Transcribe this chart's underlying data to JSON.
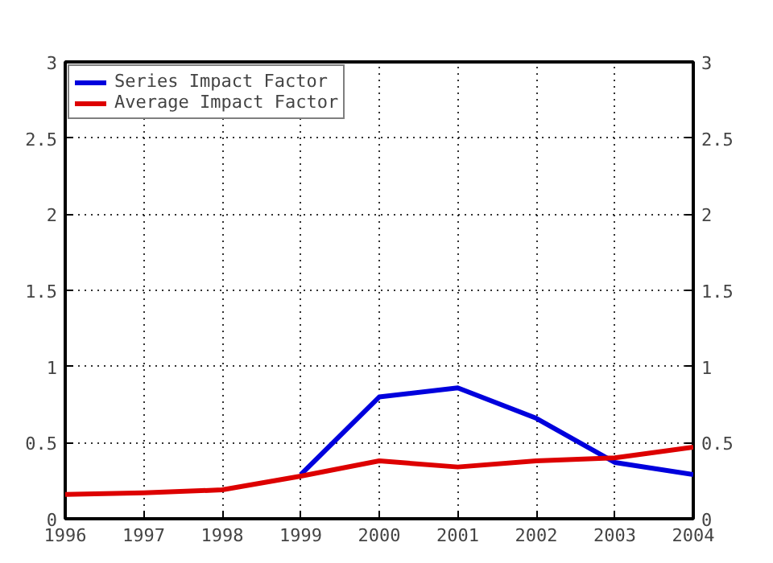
{
  "chart_data": {
    "type": "line",
    "x": [
      1996,
      1997,
      1998,
      1999,
      2000,
      2001,
      2002,
      2003,
      2004
    ],
    "series": [
      {
        "name": "Series Impact Factor",
        "color": "#0000dd",
        "values": [
          null,
          null,
          null,
          0.29,
          0.8,
          0.86,
          0.66,
          0.37,
          0.29
        ]
      },
      {
        "name": "Average Impact Factor",
        "color": "#dd0000",
        "values": [
          0.16,
          0.17,
          0.19,
          0.28,
          0.38,
          0.34,
          0.38,
          0.4,
          0.47
        ]
      }
    ],
    "xlim": [
      1996,
      2004
    ],
    "xticks": [
      1996,
      1997,
      1998,
      1999,
      2000,
      2001,
      2002,
      2003,
      2004
    ],
    "ylim": [
      0,
      3
    ],
    "yticks": [
      0,
      0.5,
      1,
      1.5,
      2,
      2.5,
      3
    ],
    "y2lim": [
      0,
      3
    ],
    "y2ticks": [
      0,
      0.5,
      1,
      1.5,
      2,
      2.5,
      3
    ],
    "grid": true,
    "legend": "top left",
    "marker": "none",
    "line_style": "solid"
  }
}
